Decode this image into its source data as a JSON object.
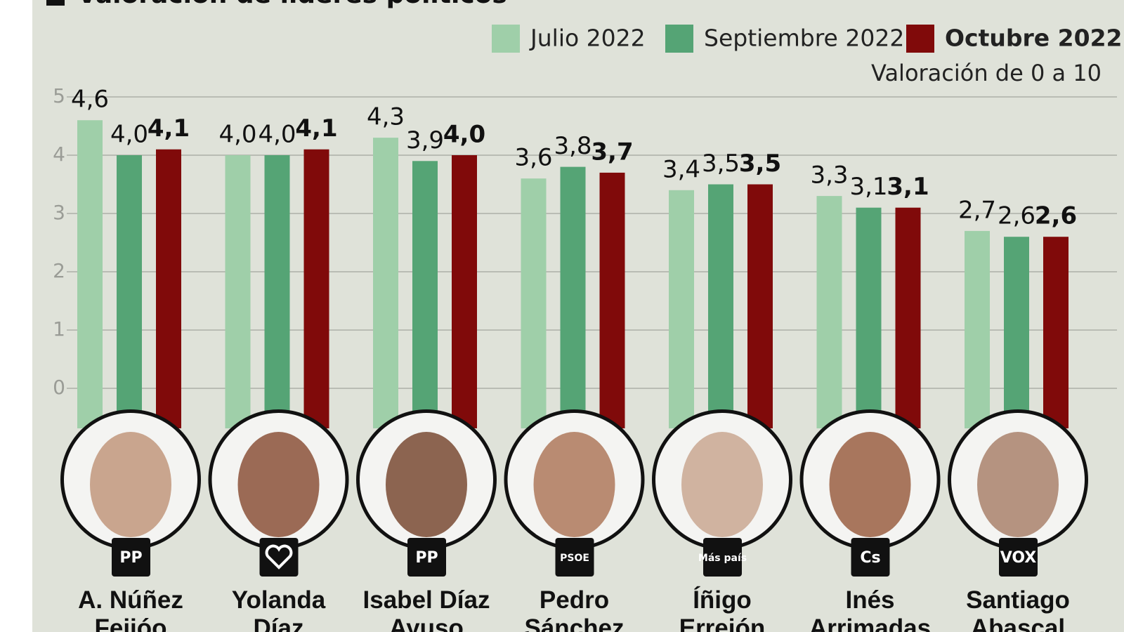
{
  "chart_data": {
    "type": "bar",
    "title": "Valoración de líderes políticos",
    "subtitle": "Valoración de 0 a 10",
    "categories": [
      "A. Núñez Feijóo",
      "Yolanda Díaz",
      "Isabel Díaz Ayuso",
      "Pedro Sánchez",
      "Íñigo Errejón",
      "Inés Arrimadas",
      "Santiago Abascal"
    ],
    "parties": [
      "PP",
      null,
      "PP",
      "PSOE",
      "Más país",
      "Cs",
      "VOX"
    ],
    "series": [
      {
        "name": "Julio 2022",
        "color": "#9fcfa9",
        "values": [
          4.6,
          4.0,
          4.3,
          3.6,
          3.4,
          3.3,
          2.7
        ],
        "value_labels": [
          "4,6",
          "4,0",
          "4,3",
          "3,6",
          "3,4",
          "3,3",
          "2,7"
        ]
      },
      {
        "name": "Septiembre 2022",
        "color": "#55a475",
        "values": [
          4.0,
          4.0,
          3.9,
          3.8,
          3.5,
          3.1,
          2.6
        ],
        "value_labels": [
          "4,0",
          "4,0",
          "3,9",
          "3,8",
          "3,5",
          "3,1",
          "2,6"
        ]
      },
      {
        "name": "Octubre 2022",
        "color": "#800a0a",
        "bold": true,
        "values": [
          4.1,
          4.1,
          4.0,
          3.7,
          3.5,
          3.1,
          2.6
        ],
        "value_labels": [
          "4,1",
          "4,1",
          "4,0",
          "3,7",
          "3,5",
          "3,1",
          "2,6"
        ]
      }
    ],
    "ylim": [
      0,
      5
    ],
    "yticks": [
      0,
      1,
      2,
      3,
      4,
      5
    ],
    "grid": true
  }
}
